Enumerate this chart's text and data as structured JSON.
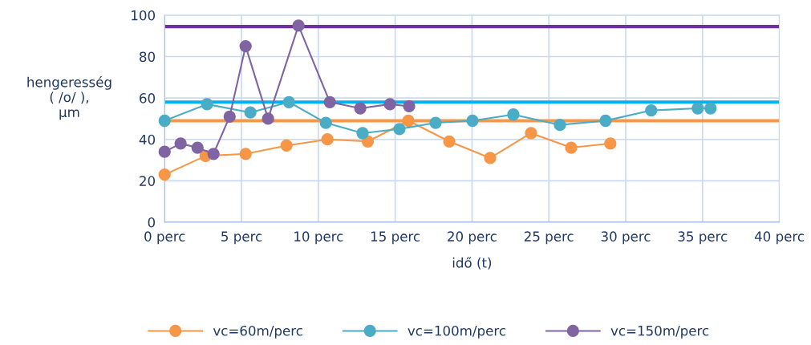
{
  "chart_data": {
    "type": "line",
    "xlabel": "idő (t)",
    "ylabel": "hengeresség\n( /o/ ),\nµm",
    "xlim": [
      0,
      40
    ],
    "ylim": [
      0,
      100
    ],
    "xticks": [
      {
        "value": 0,
        "label": "0 perc"
      },
      {
        "value": 5,
        "label": "5 perc"
      },
      {
        "value": 10,
        "label": "10 perc"
      },
      {
        "value": 15,
        "label": "15 perc"
      },
      {
        "value": 20,
        "label": "20 perc"
      },
      {
        "value": 25,
        "label": "25 perc"
      },
      {
        "value": 30,
        "label": "30 perc"
      },
      {
        "value": 35,
        "label": "35 perc"
      },
      {
        "value": 40,
        "label": "40 perc"
      }
    ],
    "yticks": [
      0,
      20,
      40,
      60,
      80,
      100
    ],
    "grid": true,
    "legend": "bottom",
    "marker": "circle",
    "line_style": "solid",
    "series": [
      {
        "name": "vc=60m/perc",
        "color": "#f79646",
        "x": [
          0,
          2.66,
          5.27,
          7.93,
          10.59,
          13.22,
          15.86,
          18.52,
          21.18,
          23.84,
          26.45,
          29.0
        ],
        "values": [
          23,
          32,
          33,
          37,
          40,
          39,
          49,
          39,
          31,
          43,
          36,
          38
        ]
      },
      {
        "name": "vc=100m/perc",
        "color": "#4bacc6",
        "x": [
          0,
          2.76,
          5.58,
          8.09,
          10.49,
          12.88,
          15.28,
          17.63,
          20.03,
          22.69,
          25.72,
          28.69,
          31.66,
          34.69,
          35.52
        ],
        "values": [
          49,
          57,
          53,
          58,
          48,
          43,
          45,
          48,
          49,
          52,
          47,
          49,
          54,
          55,
          55
        ]
      },
      {
        "name": "vc=150m/perc",
        "color": "#8064a2",
        "x": [
          0,
          1.04,
          2.14,
          3.18,
          4.23,
          5.27,
          6.73,
          8.71,
          10.75,
          12.73,
          14.66,
          15.91
        ],
        "values": [
          34,
          38,
          36,
          33,
          51,
          85,
          50,
          95,
          58,
          55,
          57,
          56
        ]
      }
    ],
    "ref_lines": [
      {
        "axis": "y",
        "value": 94.5,
        "color": "#7030a0"
      },
      {
        "axis": "y",
        "value": 58,
        "color": "#00b0f0"
      },
      {
        "axis": "y",
        "value": 49,
        "color": "#f79646"
      }
    ]
  }
}
